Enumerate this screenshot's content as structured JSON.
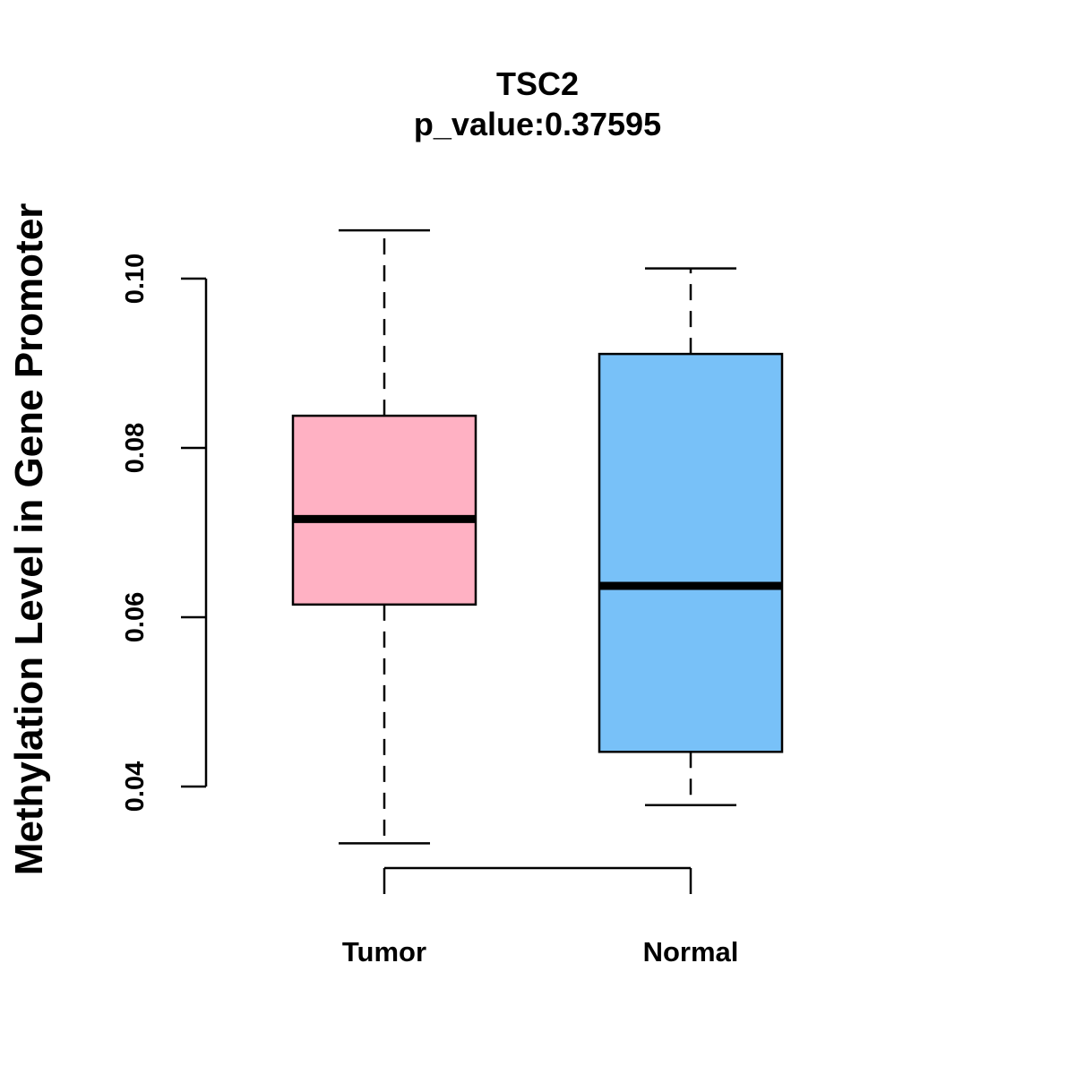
{
  "chart_data": {
    "type": "box",
    "title": "TSC2",
    "subtitle": "p_value:0.37595",
    "xlabel": "",
    "ylabel": "Methylation Level in Gene Promoter",
    "ylim": [
      0.04,
      0.1
    ],
    "yticks": [
      "0.04",
      "0.06",
      "0.08",
      "0.10"
    ],
    "categories": [
      "Tumor",
      "Normal"
    ],
    "boxes": [
      {
        "name": "Tumor",
        "min": 0.0333,
        "q1": 0.0615,
        "median": 0.0716,
        "q3": 0.0838,
        "max": 0.1057,
        "color": "#FFB1C3"
      },
      {
        "name": "Normal",
        "min": 0.0378,
        "q1": 0.0441,
        "median": 0.0637,
        "q3": 0.0911,
        "max": 0.1012,
        "color": "#78C1F8"
      }
    ],
    "grid": false,
    "legend": "none"
  }
}
